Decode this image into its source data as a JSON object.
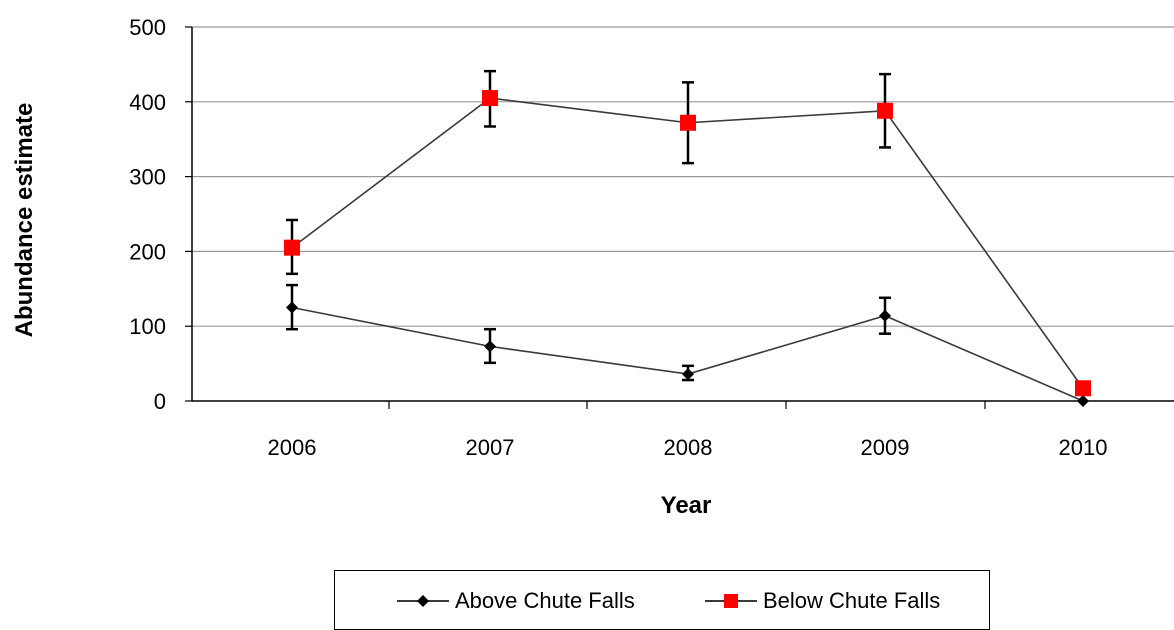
{
  "chart_data": {
    "type": "line",
    "x": [
      "2006",
      "2007",
      "2008",
      "2009",
      "2010"
    ],
    "xlabel": "Year",
    "ylabel": "Abundance estimate",
    "ylim": [
      0,
      500
    ],
    "yticks": [
      "0",
      "100",
      "200",
      "300",
      "400",
      "500"
    ],
    "grid": true,
    "legend_position": "bottom",
    "series": [
      {
        "name": "Above Chute Falls",
        "color": "#000000",
        "marker": "diamond",
        "values": [
          125,
          73,
          36,
          114,
          0
        ],
        "error_low": [
          96,
          51,
          28,
          90,
          null
        ],
        "error_high": [
          155,
          96,
          47,
          138,
          null
        ]
      },
      {
        "name": "Below Chute Falls",
        "color": "#ff0000",
        "marker": "square",
        "values": [
          205,
          405,
          372,
          388,
          17
        ],
        "error_low": [
          170,
          367,
          318,
          339,
          null
        ],
        "error_high": [
          242,
          441,
          426,
          437,
          null
        ]
      }
    ]
  }
}
